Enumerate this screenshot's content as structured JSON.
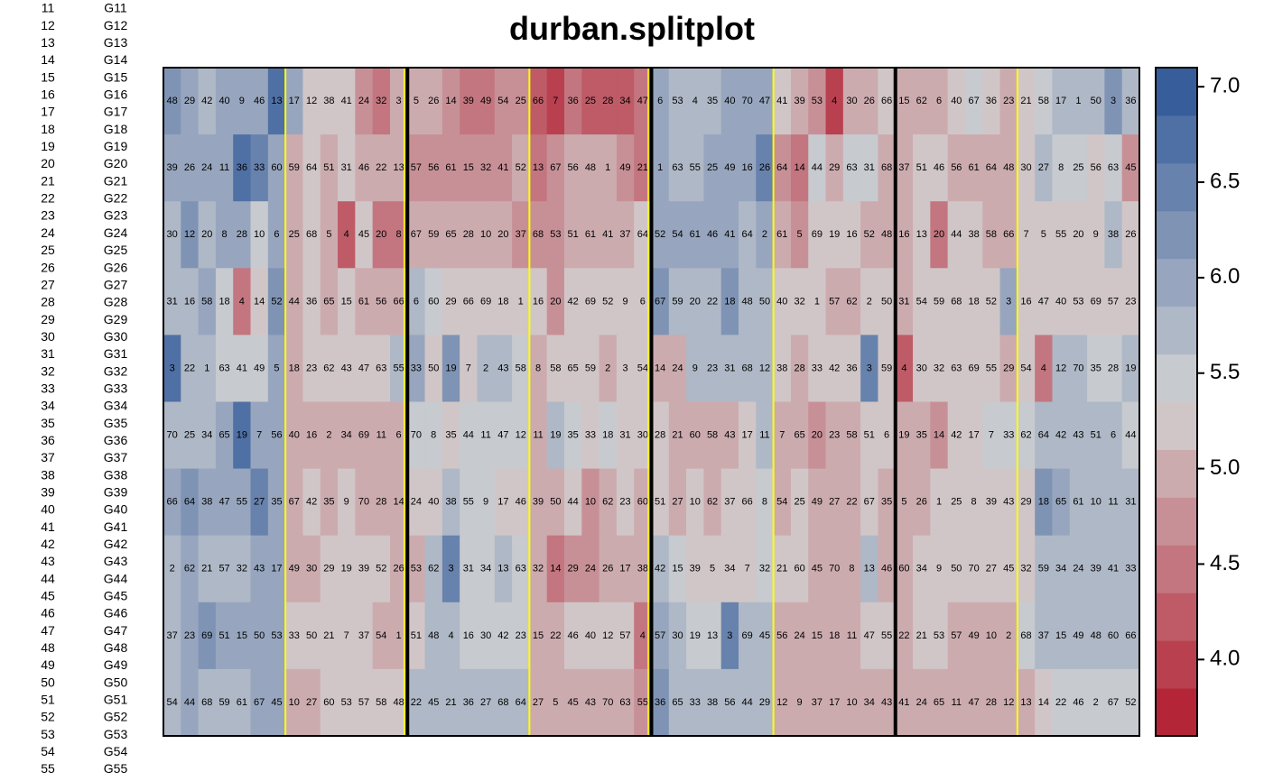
{
  "chart_data": {
    "type": "heatmap",
    "title": "durban.splitplot",
    "left_labels": [
      {
        "num": "11",
        "gen": "G11"
      },
      {
        "num": "12",
        "gen": "G12"
      },
      {
        "num": "13",
        "gen": "G13"
      },
      {
        "num": "14",
        "gen": "G14"
      },
      {
        "num": "15",
        "gen": "G15"
      },
      {
        "num": "16",
        "gen": "G16"
      },
      {
        "num": "17",
        "gen": "G17"
      },
      {
        "num": "18",
        "gen": "G18"
      },
      {
        "num": "19",
        "gen": "G19"
      },
      {
        "num": "20",
        "gen": "G20"
      },
      {
        "num": "21",
        "gen": "G21"
      },
      {
        "num": "22",
        "gen": "G22"
      },
      {
        "num": "23",
        "gen": "G23"
      },
      {
        "num": "24",
        "gen": "G24"
      },
      {
        "num": "25",
        "gen": "G25"
      },
      {
        "num": "26",
        "gen": "G26"
      },
      {
        "num": "27",
        "gen": "G27"
      },
      {
        "num": "28",
        "gen": "G28"
      },
      {
        "num": "29",
        "gen": "G29"
      },
      {
        "num": "30",
        "gen": "G30"
      },
      {
        "num": "31",
        "gen": "G31"
      },
      {
        "num": "32",
        "gen": "G32"
      },
      {
        "num": "33",
        "gen": "G33"
      },
      {
        "num": "34",
        "gen": "G34"
      },
      {
        "num": "35",
        "gen": "G35"
      },
      {
        "num": "36",
        "gen": "G36"
      },
      {
        "num": "37",
        "gen": "G37"
      },
      {
        "num": "38",
        "gen": "G38"
      },
      {
        "num": "39",
        "gen": "G39"
      },
      {
        "num": "40",
        "gen": "G40"
      },
      {
        "num": "41",
        "gen": "G41"
      },
      {
        "num": "42",
        "gen": "G42"
      },
      {
        "num": "43",
        "gen": "G43"
      },
      {
        "num": "44",
        "gen": "G44"
      },
      {
        "num": "45",
        "gen": "G45"
      },
      {
        "num": "46",
        "gen": "G46"
      },
      {
        "num": "47",
        "gen": "G47"
      },
      {
        "num": "48",
        "gen": "G48"
      },
      {
        "num": "49",
        "gen": "G49"
      },
      {
        "num": "50",
        "gen": "G50"
      },
      {
        "num": "51",
        "gen": "G51"
      },
      {
        "num": "52",
        "gen": "G52"
      },
      {
        "num": "53",
        "gen": "G53"
      },
      {
        "num": "54",
        "gen": "G54"
      },
      {
        "num": "55",
        "gen": "G55"
      }
    ],
    "genotype_labels": [
      [
        48,
        29,
        42,
        40,
        9,
        46,
        13,
        17,
        12,
        38,
        41,
        24,
        32,
        3,
        5,
        26,
        14,
        39,
        49,
        54,
        25,
        66,
        7,
        36,
        25,
        28,
        34,
        47,
        6,
        53,
        4,
        35,
        40,
        70,
        47,
        41,
        39,
        53,
        4,
        30,
        26,
        66,
        15,
        62,
        6,
        40,
        67,
        36,
        23,
        21,
        58,
        17,
        1,
        50,
        3,
        36
      ],
      [
        39,
        26,
        24,
        11,
        36,
        33,
        60,
        59,
        64,
        51,
        31,
        46,
        22,
        13,
        57,
        56,
        61,
        15,
        32,
        41,
        52,
        13,
        67,
        56,
        48,
        1,
        49,
        21,
        1,
        63,
        55,
        25,
        49,
        16,
        26,
        64,
        14,
        44,
        29,
        63,
        31,
        68,
        37,
        51,
        46,
        56,
        61,
        64,
        48,
        30,
        27,
        8,
        25,
        56,
        63,
        45
      ],
      [
        30,
        12,
        20,
        8,
        28,
        10,
        6,
        25,
        68,
        5,
        4,
        45,
        20,
        8,
        67,
        59,
        65,
        28,
        10,
        20,
        37,
        68,
        53,
        51,
        61,
        41,
        37,
        64,
        52,
        54,
        61,
        46,
        41,
        64,
        2,
        61,
        5,
        69,
        19,
        16,
        52,
        48,
        16,
        13,
        20,
        44,
        38,
        58,
        66,
        7,
        5,
        55,
        20,
        9,
        38,
        26
      ],
      [
        31,
        16,
        58,
        18,
        4,
        14,
        52,
        44,
        36,
        65,
        15,
        61,
        56,
        66,
        6,
        60,
        29,
        66,
        69,
        18,
        1,
        16,
        20,
        42,
        69,
        52,
        9,
        6,
        67,
        59,
        20,
        22,
        18,
        48,
        50,
        40,
        32,
        1,
        57,
        62,
        2,
        50,
        31,
        54,
        59,
        68,
        18,
        52,
        3,
        16,
        47,
        40,
        53,
        69,
        57,
        23
      ],
      [
        3,
        22,
        1,
        63,
        41,
        49,
        5,
        18,
        23,
        62,
        43,
        47,
        63,
        55,
        33,
        50,
        19,
        7,
        2,
        43,
        58,
        8,
        58,
        65,
        59,
        2,
        3,
        54,
        14,
        24,
        9,
        23,
        31,
        68,
        12,
        38,
        28,
        33,
        42,
        36,
        3,
        59,
        4,
        30,
        32,
        63,
        69,
        55,
        29,
        54,
        4,
        12,
        70,
        35,
        28,
        19
      ],
      [
        70,
        25,
        34,
        65,
        19,
        7,
        56,
        40,
        16,
        2,
        34,
        69,
        11,
        6,
        70,
        8,
        35,
        44,
        11,
        47,
        12,
        11,
        19,
        35,
        33,
        18,
        31,
        30,
        28,
        21,
        60,
        58,
        43,
        17,
        11,
        7,
        65,
        20,
        23,
        58,
        51,
        6,
        19,
        35,
        14,
        42,
        17,
        7,
        33,
        62,
        64,
        42,
        43,
        51,
        6,
        44
      ],
      [
        66,
        64,
        38,
        47,
        55,
        27,
        35,
        67,
        42,
        35,
        9,
        70,
        28,
        14,
        24,
        40,
        38,
        55,
        9,
        17,
        46,
        39,
        50,
        44,
        10,
        62,
        23,
        60,
        51,
        27,
        10,
        62,
        37,
        66,
        8,
        54,
        25,
        49,
        27,
        22,
        67,
        35,
        5,
        26,
        1,
        25,
        8,
        39,
        43,
        29,
        18,
        65,
        61,
        10,
        11,
        31
      ],
      [
        2,
        62,
        21,
        57,
        32,
        43,
        17,
        49,
        30,
        29,
        19,
        39,
        52,
        26,
        53,
        62,
        3,
        31,
        34,
        13,
        63,
        32,
        14,
        29,
        24,
        26,
        17,
        38,
        42,
        15,
        39,
        5,
        34,
        7,
        32,
        21,
        60,
        45,
        70,
        8,
        13,
        46,
        60,
        34,
        9,
        50,
        70,
        27,
        45,
        32,
        59,
        34,
        24,
        39,
        41,
        33
      ],
      [
        37,
        23,
        69,
        51,
        15,
        50,
        53,
        33,
        50,
        21,
        7,
        37,
        54,
        1,
        51,
        48,
        4,
        16,
        30,
        42,
        23,
        15,
        22,
        46,
        40,
        12,
        57,
        4,
        57,
        30,
        19,
        13,
        3,
        69,
        45,
        56,
        24,
        15,
        18,
        11,
        47,
        55,
        22,
        21,
        53,
        57,
        49,
        10,
        2,
        68,
        37,
        15,
        49,
        48,
        60,
        66
      ],
      [
        54,
        44,
        68,
        59,
        61,
        67,
        45,
        10,
        27,
        60,
        53,
        57,
        58,
        48,
        22,
        45,
        21,
        36,
        27,
        68,
        64,
        27,
        5,
        45,
        43,
        70,
        63,
        55,
        36,
        65,
        33,
        38,
        56,
        44,
        29,
        12,
        9,
        37,
        17,
        10,
        34,
        43,
        41,
        24,
        65,
        11,
        47,
        28,
        12,
        13,
        14,
        22,
        46,
        2,
        67,
        52
      ]
    ],
    "color_values": [
      [
        6.1,
        5.9,
        5.7,
        6.0,
        6.0,
        6.0,
        6.8,
        5.9,
        5.2,
        5.2,
        5.2,
        4.8,
        4.6,
        4.9,
        5.1,
        4.9,
        4.8,
        4.6,
        4.6,
        4.7,
        4.8,
        4.3,
        4.0,
        4.4,
        4.2,
        4.2,
        4.3,
        4.6,
        5.9,
        5.7,
        5.7,
        5.7,
        5.9,
        6.0,
        6.0,
        5.3,
        5.0,
        4.7,
        4.0,
        4.9,
        5.0,
        5.3,
        5.1,
        5.0,
        5.0,
        5.3,
        5.4,
        5.2,
        5.1,
        5.3,
        5.5,
        5.8,
        5.8,
        5.6,
        6.3,
        5.7
      ],
      [
        6.0,
        6.0,
        6.0,
        6.0,
        6.7,
        6.4,
        5.9,
        5.0,
        5.3,
        5.1,
        5.3,
        4.9,
        4.9,
        5.1,
        4.8,
        4.8,
        4.8,
        4.8,
        4.7,
        4.8,
        4.9,
        4.5,
        4.8,
        4.9,
        5.0,
        5.0,
        4.7,
        4.6,
        5.9,
        5.7,
        5.7,
        6.0,
        6.0,
        6.0,
        6.4,
        4.7,
        4.4,
        5.4,
        4.9,
        5.4,
        5.4,
        5.1,
        5.0,
        5.2,
        5.2,
        5.1,
        5.1,
        5.1,
        5.1,
        5.2,
        5.7,
        5.4,
        5.4,
        5.3,
        5.4,
        4.8
      ],
      [
        5.7,
        6.2,
        5.7,
        6.0,
        5.9,
        5.5,
        5.9,
        5.1,
        5.2,
        4.9,
        4.2,
        5.3,
        4.5,
        4.5,
        4.9,
        4.9,
        4.9,
        4.9,
        4.9,
        5.0,
        4.8,
        4.8,
        4.8,
        4.9,
        4.9,
        5.0,
        5.0,
        5.2,
        5.9,
        5.9,
        5.9,
        5.9,
        5.9,
        5.8,
        5.9,
        5.1,
        4.8,
        5.2,
        5.3,
        5.3,
        5.1,
        5.0,
        5.1,
        5.2,
        4.5,
        5.3,
        5.2,
        5.0,
        5.0,
        5.3,
        5.3,
        5.3,
        5.2,
        5.3,
        5.6,
        5.2
      ],
      [
        5.8,
        5.8,
        5.9,
        5.4,
        4.6,
        5.3,
        6.1,
        5.1,
        5.2,
        5.1,
        5.2,
        5.0,
        5.0,
        5.0,
        5.7,
        5.5,
        5.3,
        5.3,
        5.3,
        5.3,
        5.2,
        5.2,
        4.8,
        5.2,
        5.2,
        5.2,
        5.2,
        5.3,
        6.1,
        5.8,
        5.8,
        5.8,
        6.3,
        5.8,
        5.7,
        5.3,
        5.3,
        5.3,
        4.9,
        5.1,
        5.3,
        5.2,
        5.1,
        5.2,
        5.2,
        5.3,
        5.3,
        5.3,
        5.9,
        5.3,
        5.3,
        5.2,
        5.2,
        5.2,
        5.2,
        5.2
      ],
      [
        6.8,
        5.8,
        5.6,
        5.5,
        5.4,
        5.4,
        5.9,
        5.0,
        5.2,
        5.2,
        5.2,
        5.2,
        5.2,
        5.7,
        6.0,
        5.3,
        6.1,
        5.3,
        5.8,
        5.6,
        5.4,
        5.0,
        5.3,
        5.3,
        5.2,
        5.0,
        5.3,
        5.3,
        5.0,
        5.1,
        5.7,
        5.8,
        5.8,
        5.8,
        5.8,
        5.2,
        5.0,
        5.2,
        5.3,
        5.2,
        6.4,
        5.3,
        4.3,
        5.3,
        5.3,
        5.3,
        5.3,
        5.2,
        5.0,
        5.2,
        4.6,
        5.6,
        5.6,
        5.5,
        5.4,
        5.8
      ],
      [
        5.7,
        5.6,
        5.6,
        5.9,
        6.7,
        5.9,
        5.9,
        5.0,
        5.0,
        5.0,
        5.0,
        5.0,
        5.0,
        5.1,
        5.5,
        5.5,
        5.3,
        5.5,
        5.4,
        5.4,
        5.5,
        5.0,
        5.6,
        5.4,
        5.3,
        5.4,
        5.3,
        5.2,
        5.2,
        5.1,
        5.1,
        5.1,
        5.1,
        5.3,
        5.6,
        5.0,
        4.9,
        4.7,
        5.0,
        5.0,
        5.3,
        5.3,
        5.1,
        5.1,
        4.7,
        5.3,
        5.3,
        5.5,
        5.4,
        5.4,
        5.6,
        5.7,
        5.7,
        5.6,
        5.7,
        5.5
      ],
      [
        6.0,
        6.1,
        6.0,
        6.0,
        6.0,
        6.5,
        6.0,
        5.0,
        5.3,
        5.1,
        5.3,
        5.1,
        5.1,
        4.9,
        5.3,
        5.3,
        5.6,
        5.4,
        5.4,
        5.3,
        5.3,
        5.0,
        5.1,
        5.2,
        4.8,
        5.0,
        5.2,
        5.1,
        5.3,
        5.0,
        5.3,
        5.0,
        5.3,
        5.3,
        5.4,
        5.1,
        5.2,
        5.0,
        5.0,
        5.0,
        5.2,
        5.0,
        5.0,
        5.1,
        5.3,
        5.3,
        5.3,
        5.3,
        5.3,
        5.3,
        6.2,
        6.0,
        5.7,
        5.8,
        5.8,
        5.8
      ],
      [
        5.8,
        6.0,
        5.7,
        5.7,
        5.7,
        5.9,
        5.9,
        4.9,
        5.1,
        5.2,
        5.3,
        5.2,
        5.2,
        5.1,
        5.0,
        5.6,
        6.5,
        5.5,
        5.5,
        5.6,
        5.5,
        5.0,
        4.6,
        4.8,
        4.8,
        5.0,
        5.1,
        5.0,
        5.6,
        5.5,
        5.3,
        5.3,
        5.2,
        5.2,
        5.4,
        5.2,
        5.2,
        5.1,
        5.1,
        5.1,
        5.6,
        5.0,
        5.0,
        5.2,
        5.2,
        5.3,
        5.3,
        5.3,
        5.2,
        5.2,
        5.8,
        5.8,
        5.7,
        5.7,
        5.8,
        5.8
      ],
      [
        5.8,
        6.0,
        6.1,
        6.0,
        6.0,
        6.0,
        6.0,
        5.2,
        5.2,
        5.3,
        5.3,
        5.3,
        5.1,
        5.0,
        5.3,
        5.8,
        5.6,
        5.5,
        5.5,
        5.4,
        5.4,
        5.0,
        5.0,
        5.3,
        5.3,
        5.3,
        5.2,
        4.4,
        5.9,
        5.6,
        5.5,
        5.5,
        6.5,
        5.8,
        5.8,
        5.0,
        5.0,
        5.0,
        5.1,
        5.1,
        5.2,
        5.2,
        5.0,
        5.2,
        5.2,
        5.0,
        4.9,
        5.0,
        4.9,
        5.5,
        5.7,
        5.6,
        5.7,
        5.7,
        5.7,
        5.7
      ],
      [
        5.8,
        6.0,
        5.8,
        5.8,
        5.8,
        6.0,
        6.0,
        4.9,
        5.1,
        5.2,
        5.2,
        5.2,
        5.3,
        5.2,
        5.6,
        5.6,
        5.6,
        5.7,
        5.7,
        5.7,
        5.7,
        4.9,
        4.9,
        4.9,
        4.9,
        4.9,
        4.9,
        4.8,
        6.1,
        5.8,
        5.8,
        5.8,
        5.8,
        5.7,
        5.7,
        4.9,
        4.9,
        4.9,
        4.9,
        4.9,
        4.9,
        5.0,
        5.0,
        5.0,
        4.9,
        5.0,
        5.0,
        4.9,
        5.0,
        5.1,
        5.3,
        5.4,
        5.5,
        5.5,
        5.5,
        5.5
      ]
    ],
    "n_cols": 56,
    "n_rows": 10,
    "block_separators_after_col": [
      14,
      28,
      42
    ],
    "subplot_separators_after_col": [
      7,
      21,
      35,
      49
    ],
    "color_scale": {
      "type": "diverging",
      "low_color": "#B2182B",
      "mid_color": "#D3D3D3",
      "high_color": "#2B5597",
      "min": 3.6,
      "max": 7.1,
      "ticks": [
        4.0,
        4.5,
        5.0,
        5.5,
        6.0,
        6.5,
        7.0
      ],
      "tick_labels": [
        "4.0",
        "4.5",
        "5.0",
        "5.5",
        "6.0",
        "6.5",
        "7.0"
      ]
    },
    "subplot_line_color": "#FFFF00",
    "block_line_color": "#000000"
  }
}
